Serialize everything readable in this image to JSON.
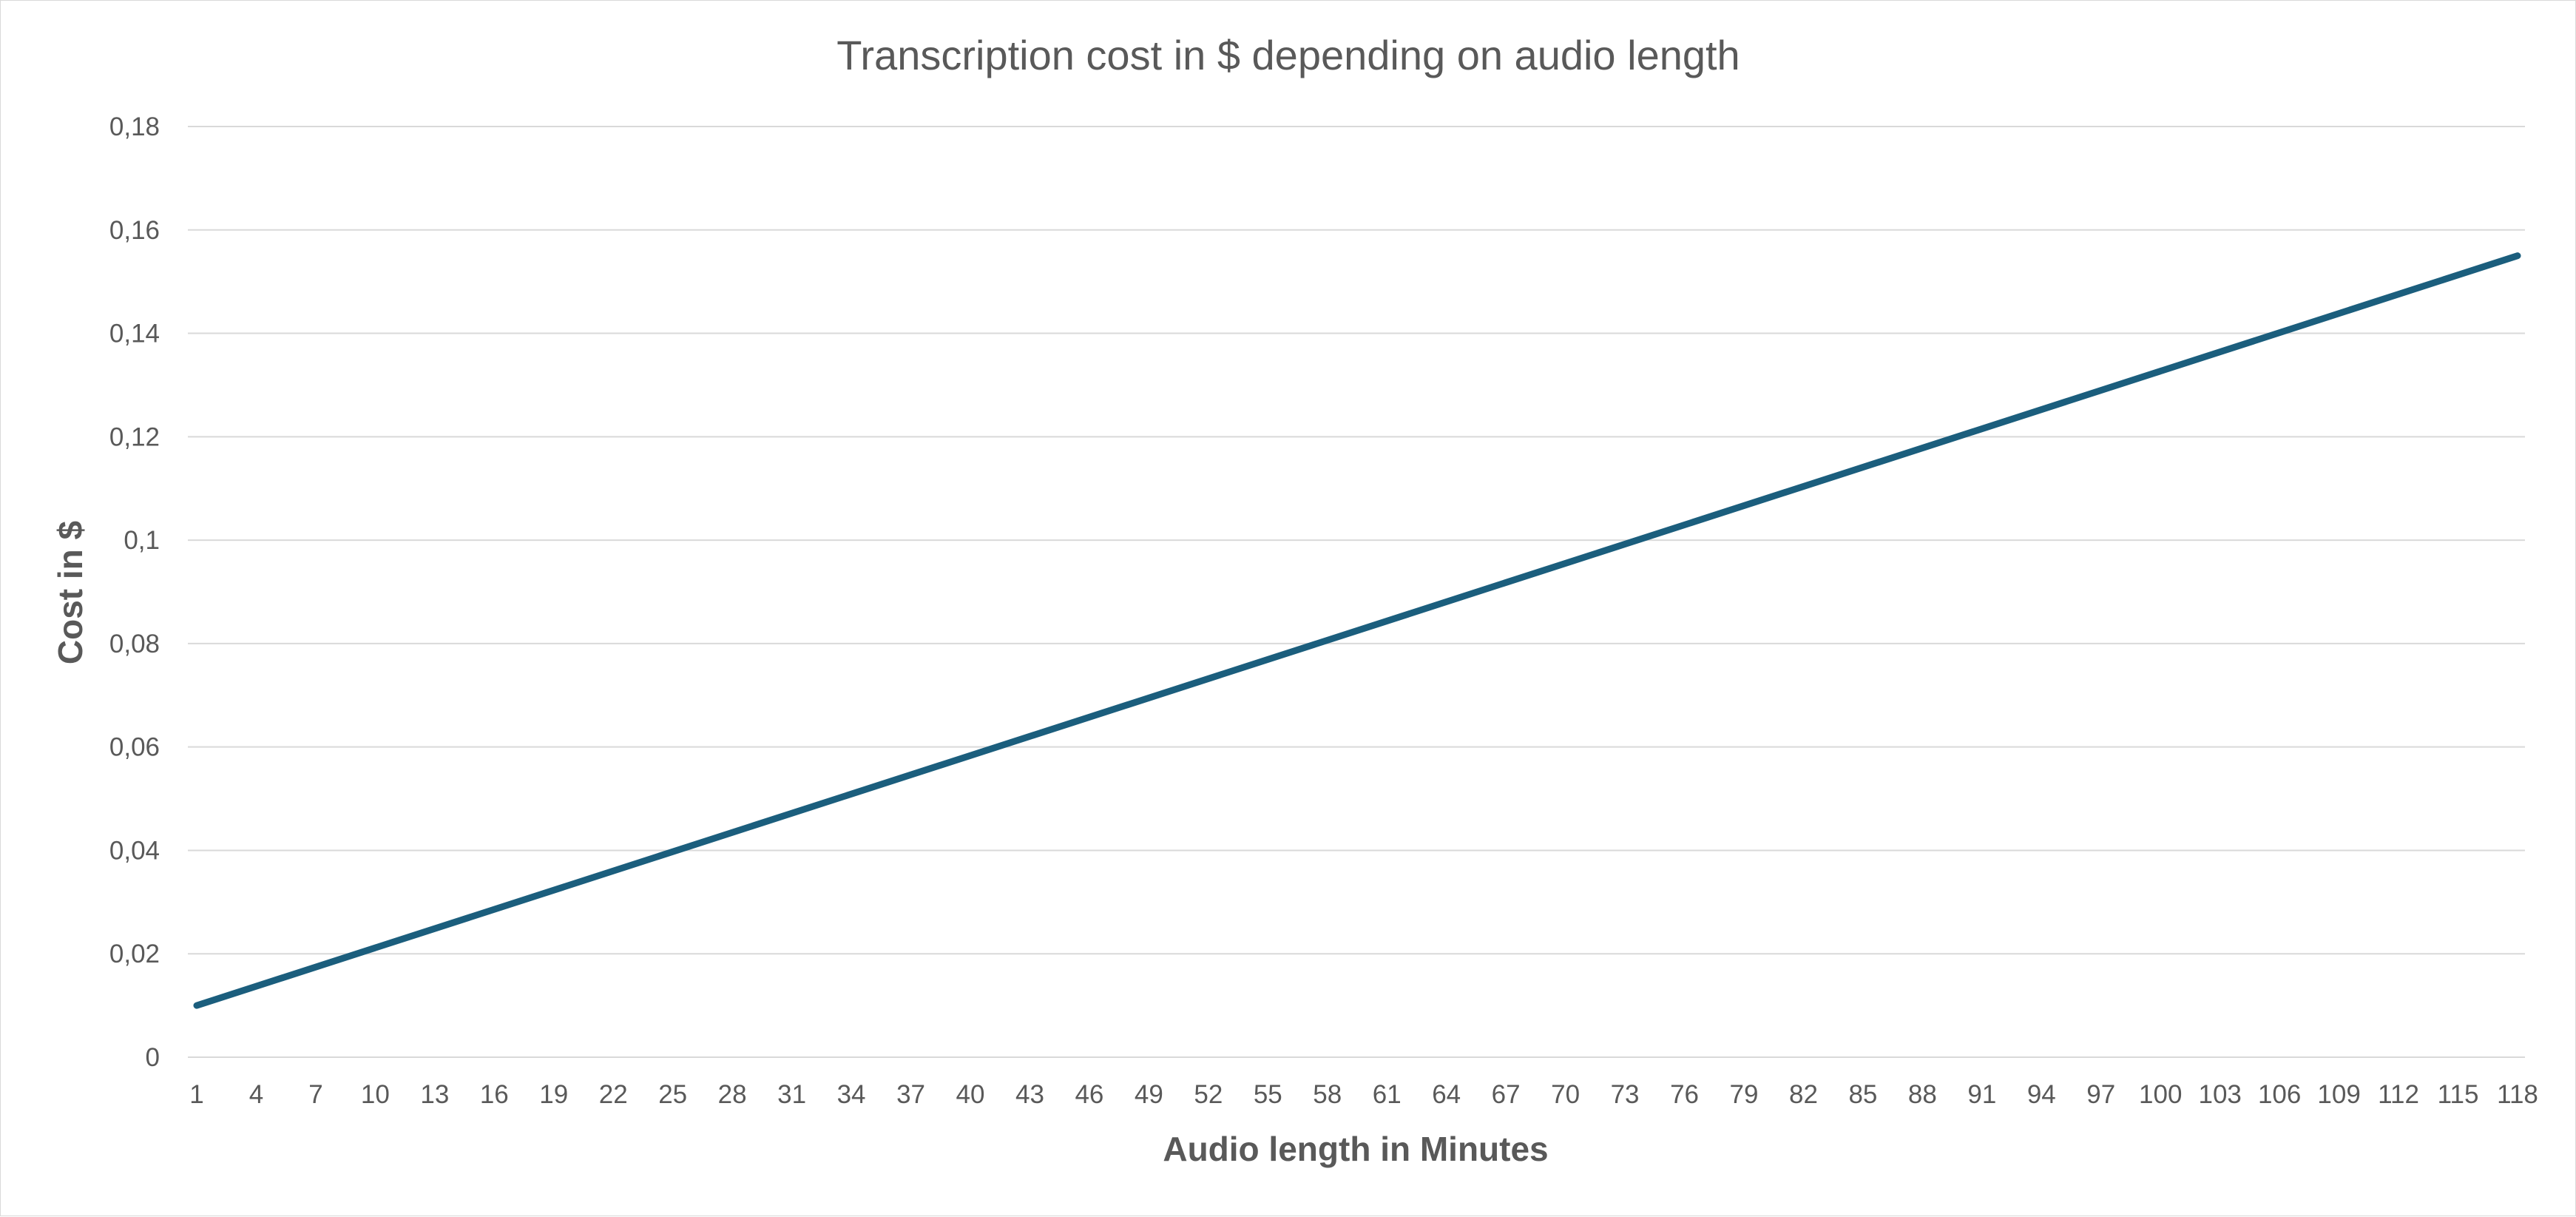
{
  "chart_data": {
    "type": "line",
    "title": "Transcription cost in $ depending on audio length",
    "xlabel": "Audio length in Minutes",
    "ylabel": "Cost in $",
    "x_start": 1,
    "x_end": 118,
    "x_tick_labels": [
      "1",
      "4",
      "7",
      "10",
      "13",
      "16",
      "19",
      "22",
      "25",
      "28",
      "31",
      "34",
      "37",
      "40",
      "43",
      "46",
      "49",
      "52",
      "55",
      "58",
      "61",
      "64",
      "67",
      "70",
      "73",
      "76",
      "79",
      "82",
      "85",
      "88",
      "91",
      "94",
      "97",
      "100",
      "103",
      "106",
      "109",
      "112",
      "115",
      "118"
    ],
    "y_tick_labels": [
      "0",
      "0,02",
      "0,04",
      "0,06",
      "0,08",
      "0,1",
      "0,12",
      "0,14",
      "0,16",
      "0,18"
    ],
    "ylim": [
      0,
      0.18
    ],
    "y_ticks": [
      0,
      0.02,
      0.04,
      0.06,
      0.08,
      0.1,
      0.12,
      0.14,
      0.16,
      0.18
    ],
    "grid": true,
    "legend": "none",
    "series": [
      {
        "color": "#1b5e7d",
        "x": [
          1,
          118
        ],
        "y": [
          0.01,
          0.155
        ]
      }
    ]
  }
}
